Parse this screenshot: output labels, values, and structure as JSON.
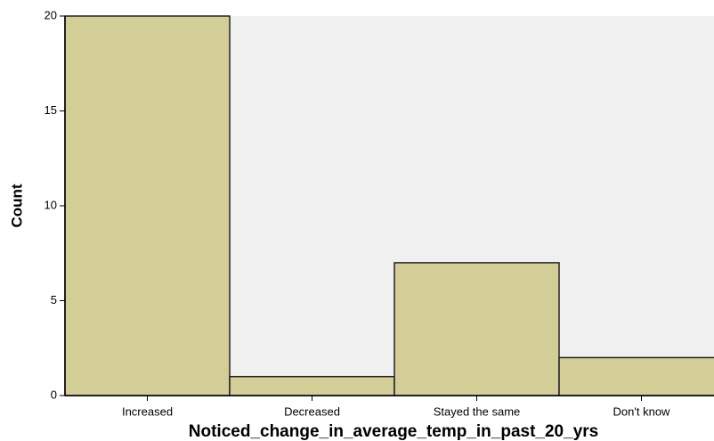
{
  "chart_data": {
    "type": "bar",
    "categories": [
      "Increased",
      "Decreased",
      "Stayed the same",
      "Don't know"
    ],
    "values": [
      20,
      1,
      7,
      2
    ],
    "color": "#d3ce98",
    "xlabel": "Noticed_change_in_average_temp_in_past_20_yrs",
    "ylabel": "Count",
    "ylim": [
      0,
      20
    ],
    "yticks": [
      0,
      5,
      10,
      15,
      20
    ]
  }
}
